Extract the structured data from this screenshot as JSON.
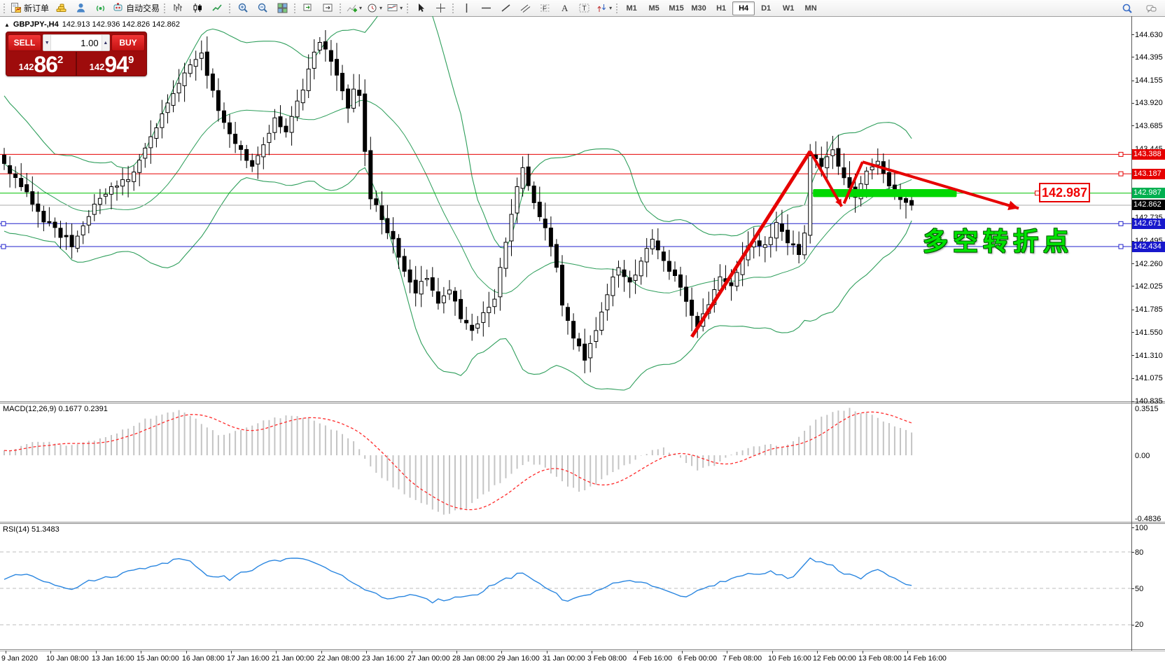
{
  "toolbar": {
    "groups": [
      {
        "items": [
          {
            "name": "new-order-button",
            "icon": "new-order",
            "label": "新订单"
          },
          {
            "name": "market-watch-button",
            "icon": "gold"
          },
          {
            "name": "community-button",
            "icon": "person"
          },
          {
            "name": "signals-button",
            "icon": "signal"
          },
          {
            "name": "autotrading-button",
            "icon": "autotrade",
            "label": "自动交易"
          }
        ]
      },
      {
        "items": [
          {
            "name": "bar-chart-button",
            "icon": "bars"
          },
          {
            "name": "candlestick-button",
            "icon": "candles"
          },
          {
            "name": "line-chart-button",
            "icon": "line"
          }
        ]
      },
      {
        "items": [
          {
            "name": "zoom-in-button",
            "icon": "zoom-in"
          },
          {
            "name": "zoom-out-button",
            "icon": "zoom-out"
          },
          {
            "name": "tile-windows-button",
            "icon": "tile"
          }
        ]
      },
      {
        "items": [
          {
            "name": "autoscroll-button",
            "icon": "arrange"
          },
          {
            "name": "chart-shift-button",
            "icon": "shift"
          }
        ]
      },
      {
        "items": [
          {
            "name": "indicators-button",
            "icon": "indicators",
            "dropdown": true
          },
          {
            "name": "periods-button",
            "icon": "clock",
            "dropdown": true
          },
          {
            "name": "templates-button",
            "icon": "template",
            "dropdown": true
          }
        ]
      },
      {
        "items": [
          {
            "name": "cursor-button",
            "icon": "cursor"
          },
          {
            "name": "crosshair-button",
            "icon": "crosshair"
          }
        ]
      },
      {
        "items": [
          {
            "name": "vertical-line-button",
            "icon": "vline"
          },
          {
            "name": "horizontal-line-button",
            "icon": "hline"
          },
          {
            "name": "trendline-button",
            "icon": "tline"
          },
          {
            "name": "equidistant-channel-button",
            "icon": "channel"
          },
          {
            "name": "fibonacci-button",
            "icon": "fibo"
          },
          {
            "name": "text-button",
            "icon": "text"
          },
          {
            "name": "text-label-button",
            "icon": "label"
          },
          {
            "name": "arrows-button",
            "icon": "arrows",
            "dropdown": true
          }
        ]
      }
    ],
    "timeframes": [
      "M1",
      "M5",
      "M15",
      "M30",
      "H1",
      "H4",
      "D1",
      "W1",
      "MN"
    ],
    "active_timeframe": "H4"
  },
  "quote": {
    "collapse_glyph": "▲",
    "symbol": "GBPJPY-,H4",
    "ohlc": "142.913 142.936 142.826 142.862",
    "sell_label": "SELL",
    "buy_label": "BUY",
    "volume": "1.00",
    "sell_price": {
      "prefix": "142",
      "big": "86",
      "sup": "2"
    },
    "buy_price": {
      "prefix": "142",
      "big": "94",
      "sup": "9"
    }
  },
  "price_axis": {
    "labels": [
      "144.630",
      "144.395",
      "144.155",
      "143.920",
      "143.685",
      "143.445",
      "142.735",
      "142.495",
      "142.260",
      "142.025",
      "141.785",
      "141.550",
      "141.310",
      "141.075",
      "140.835"
    ],
    "badges": [
      {
        "text": "143.388",
        "bg": "#e60000"
      },
      {
        "text": "143.187",
        "bg": "#e60000"
      },
      {
        "text": "142.987",
        "bg": "#00b050"
      },
      {
        "text": "142.862",
        "bg": "#000000"
      },
      {
        "text": "142.671",
        "bg": "#1818cc"
      },
      {
        "text": "142.434",
        "bg": "#1818cc"
      }
    ]
  },
  "time_axis": {
    "labels": [
      "9 Jan 2020",
      "10 Jan 08:00",
      "13 Jan 16:00",
      "15 Jan 00:00",
      "16 Jan 08:00",
      "17 Jan 16:00",
      "21 Jan 00:00",
      "22 Jan 08:00",
      "23 Jan 16:00",
      "27 Jan 00:00",
      "28 Jan 08:00",
      "29 Jan 16:00",
      "31 Jan 00:00",
      "3 Feb 08:00",
      "4 Feb 16:00",
      "6 Feb 00:00",
      "7 Feb 08:00",
      "10 Feb 16:00",
      "12 Feb 00:00",
      "13 Feb 08:00",
      "14 Feb 16:00"
    ]
  },
  "indicators": {
    "macd": {
      "label": "MACD(12,26,9) 0.1677 0.2391",
      "axis": [
        {
          "v": 0.3515,
          "text": "0.3515"
        },
        {
          "v": 0,
          "text": "0.00"
        },
        {
          "v": -0.4836,
          "text": "-0.4836"
        }
      ]
    },
    "rsi": {
      "label": "RSI(14) 51.3483",
      "axis": [
        {
          "v": 100,
          "text": "100"
        },
        {
          "v": 80,
          "text": "80"
        },
        {
          "v": 50,
          "text": "50"
        },
        {
          "v": 20,
          "text": "20"
        }
      ],
      "levels": [
        80,
        50,
        20
      ]
    }
  },
  "chart_data": {
    "type": "candlestick",
    "symbol": "GBPJPY-",
    "period": "H4",
    "ylim": [
      140.835,
      144.818
    ],
    "bars": 162,
    "close_anchors": [
      [
        0,
        143.32
      ],
      [
        2,
        143.12
      ],
      [
        4,
        142.98
      ],
      [
        6,
        142.78
      ],
      [
        9,
        142.6
      ],
      [
        12,
        142.46
      ],
      [
        14,
        142.62
      ],
      [
        16,
        142.86
      ],
      [
        18,
        142.96
      ],
      [
        20,
        143.08
      ],
      [
        22,
        143.15
      ],
      [
        24,
        143.32
      ],
      [
        26,
        143.55
      ],
      [
        28,
        143.82
      ],
      [
        30,
        144.05
      ],
      [
        33,
        144.32
      ],
      [
        35,
        144.42
      ],
      [
        37,
        144.02
      ],
      [
        39,
        143.72
      ],
      [
        41,
        143.5
      ],
      [
        44,
        143.28
      ],
      [
        46,
        143.52
      ],
      [
        48,
        143.76
      ],
      [
        50,
        143.6
      ],
      [
        52,
        143.92
      ],
      [
        54,
        144.25
      ],
      [
        56,
        144.58
      ],
      [
        58,
        144.34
      ],
      [
        60,
        144.05
      ],
      [
        61,
        143.88
      ],
      [
        62,
        144.08
      ],
      [
        63,
        143.98
      ],
      [
        64,
        143.45
      ],
      [
        65,
        142.95
      ],
      [
        67,
        142.72
      ],
      [
        69,
        142.48
      ],
      [
        71,
        142.15
      ],
      [
        73,
        141.98
      ],
      [
        75,
        142.12
      ],
      [
        77,
        141.88
      ],
      [
        79,
        142.02
      ],
      [
        81,
        141.72
      ],
      [
        83,
        141.55
      ],
      [
        85,
        141.72
      ],
      [
        87,
        141.92
      ],
      [
        89,
        142.45
      ],
      [
        91,
        143.02
      ],
      [
        92,
        143.22
      ],
      [
        94,
        142.92
      ],
      [
        96,
        142.62
      ],
      [
        98,
        142.25
      ],
      [
        99,
        141.8
      ],
      [
        101,
        141.52
      ],
      [
        103,
        141.28
      ],
      [
        105,
        141.55
      ],
      [
        107,
        141.95
      ],
      [
        109,
        142.25
      ],
      [
        111,
        142.05
      ],
      [
        113,
        142.28
      ],
      [
        115,
        142.48
      ],
      [
        117,
        142.3
      ],
      [
        119,
        142.1
      ],
      [
        121,
        141.9
      ],
      [
        123,
        141.58
      ],
      [
        125,
        141.85
      ],
      [
        127,
        142.1
      ],
      [
        129,
        142.02
      ],
      [
        131,
        142.32
      ],
      [
        133,
        142.52
      ],
      [
        135,
        142.42
      ],
      [
        137,
        142.68
      ],
      [
        139,
        142.48
      ],
      [
        141,
        142.38
      ],
      [
        142,
        142.55
      ],
      [
        143,
        143.35
      ],
      [
        145,
        143.28
      ],
      [
        147,
        143.42
      ],
      [
        149,
        143.15
      ],
      [
        151,
        142.92
      ],
      [
        153,
        143.22
      ],
      [
        155,
        143.3
      ],
      [
        157,
        143.05
      ],
      [
        159,
        142.92
      ],
      [
        161,
        142.862
      ]
    ],
    "bollinger": {
      "period": 20,
      "deviation": 2,
      "color": "#2e9e5b"
    },
    "hlines": [
      {
        "price": 143.388,
        "color": "#e60000",
        "square": true
      },
      {
        "price": 143.187,
        "color": "#e60000",
        "square": true
      },
      {
        "price": 142.987,
        "color": "#00c000",
        "square": false
      },
      {
        "price": 142.862,
        "color": "#ababab",
        "square": false
      },
      {
        "price": 142.671,
        "color": "#2222cc",
        "square": true
      },
      {
        "price": 142.434,
        "color": "#2222cc",
        "square": true
      }
    ],
    "macd_anchors": [
      [
        0,
        0.03
      ],
      [
        6,
        0.1
      ],
      [
        12,
        0.07
      ],
      [
        18,
        0.13
      ],
      [
        24,
        0.25
      ],
      [
        28,
        0.31
      ],
      [
        31,
        0.33
      ],
      [
        34,
        0.27
      ],
      [
        38,
        0.15
      ],
      [
        42,
        0.18
      ],
      [
        47,
        0.27
      ],
      [
        51,
        0.3
      ],
      [
        55,
        0.27
      ],
      [
        58,
        0.2
      ],
      [
        62,
        0.1
      ],
      [
        64,
        -0.03
      ],
      [
        67,
        -0.17
      ],
      [
        71,
        -0.29
      ],
      [
        75,
        -0.38
      ],
      [
        78,
        -0.44
      ],
      [
        82,
        -0.4
      ],
      [
        86,
        -0.27
      ],
      [
        90,
        -0.13
      ],
      [
        93,
        -0.05
      ],
      [
        96,
        -0.09
      ],
      [
        99,
        -0.2
      ],
      [
        102,
        -0.28
      ],
      [
        105,
        -0.22
      ],
      [
        108,
        -0.13
      ],
      [
        111,
        -0.06
      ],
      [
        114,
        0.02
      ],
      [
        117,
        0.05
      ],
      [
        120,
        -0.02
      ],
      [
        123,
        -0.11
      ],
      [
        126,
        -0.07
      ],
      [
        129,
        0.0
      ],
      [
        132,
        0.05
      ],
      [
        135,
        0.09
      ],
      [
        138,
        0.07
      ],
      [
        141,
        0.13
      ],
      [
        144,
        0.26
      ],
      [
        147,
        0.32
      ],
      [
        150,
        0.3515
      ],
      [
        153,
        0.31
      ],
      [
        156,
        0.26
      ],
      [
        159,
        0.2
      ],
      [
        161,
        0.1677
      ]
    ],
    "rsi_anchors": [
      [
        0,
        58
      ],
      [
        4,
        62
      ],
      [
        8,
        55
      ],
      [
        12,
        50
      ],
      [
        16,
        57
      ],
      [
        20,
        61
      ],
      [
        24,
        66
      ],
      [
        28,
        71
      ],
      [
        32,
        75
      ],
      [
        36,
        62
      ],
      [
        40,
        58
      ],
      [
        44,
        66
      ],
      [
        48,
        73
      ],
      [
        52,
        76
      ],
      [
        56,
        68
      ],
      [
        60,
        61
      ],
      [
        64,
        48
      ],
      [
        68,
        42
      ],
      [
        72,
        44
      ],
      [
        76,
        39
      ],
      [
        80,
        43
      ],
      [
        84,
        46
      ],
      [
        88,
        56
      ],
      [
        92,
        63
      ],
      [
        96,
        51
      ],
      [
        100,
        39
      ],
      [
        104,
        46
      ],
      [
        108,
        53
      ],
      [
        112,
        56
      ],
      [
        116,
        51
      ],
      [
        120,
        43
      ],
      [
        124,
        49
      ],
      [
        128,
        56
      ],
      [
        132,
        61
      ],
      [
        136,
        64
      ],
      [
        140,
        58
      ],
      [
        143,
        74
      ],
      [
        146,
        71
      ],
      [
        149,
        63
      ],
      [
        152,
        58
      ],
      [
        155,
        66
      ],
      [
        158,
        57
      ],
      [
        161,
        51.35
      ]
    ],
    "annotations": {
      "turn_text": "多空转折点",
      "price_box_label": "142.987",
      "zone": {
        "from_bar": 143.5,
        "to_bar": 169,
        "price": 142.987,
        "color": "#00d802"
      },
      "trend_lines": [
        {
          "name": "rally-arrow",
          "pts": [
            [
              122,
              141.5
            ],
            [
              143,
              143.42
            ]
          ],
          "w": 5
        },
        {
          "name": "drop-arrow",
          "pts": [
            [
              143,
              143.42
            ],
            [
              148.6,
              142.85
            ]
          ],
          "w": 4,
          "arrow": 11
        },
        {
          "name": "bounce-line",
          "pts": [
            [
              149,
              142.88
            ],
            [
              152.3,
              143.31
            ]
          ],
          "w": 4
        },
        {
          "name": "fall-arrow",
          "pts": [
            [
              152.3,
              143.31
            ],
            [
              180,
              142.83
            ]
          ],
          "w": 4,
          "arrow": 16
        }
      ]
    }
  }
}
